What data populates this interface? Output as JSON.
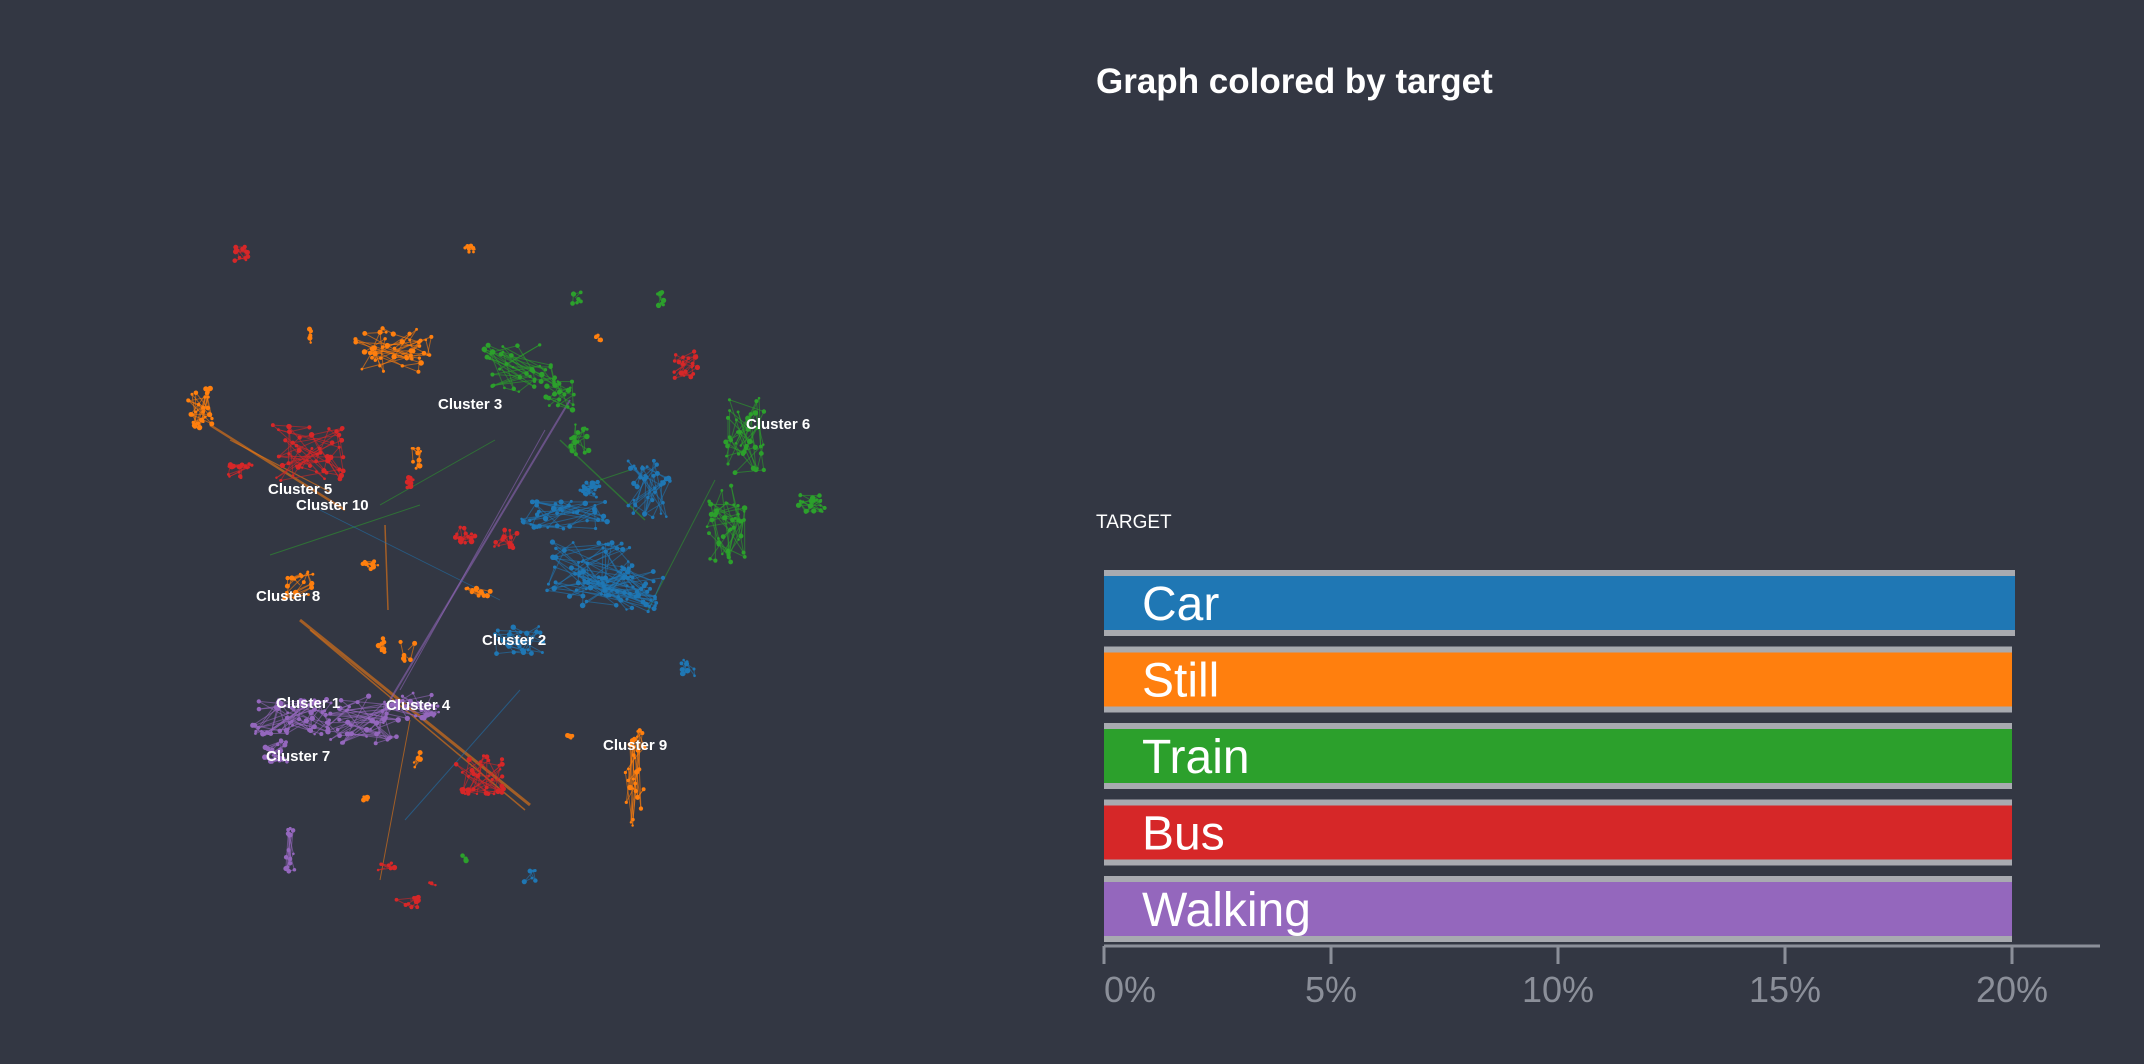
{
  "title": "Graph colored by target",
  "legend_title": "TARGET",
  "colors": {
    "background": "#333743",
    "Car": "#1f77b4",
    "Still": "#ff7f0e",
    "Train": "#2ca02c",
    "Bus": "#d62728",
    "Walking": "#9467bd",
    "bar_frame": "#a8aab0",
    "axis": "#8b8f99"
  },
  "graph": {
    "clusters": [
      {
        "label": "Cluster 1"
      },
      {
        "label": "Cluster 2"
      },
      {
        "label": "Cluster 3"
      },
      {
        "label": "Cluster 4"
      },
      {
        "label": "Cluster 5"
      },
      {
        "label": "Cluster 6"
      },
      {
        "label": "Cluster 7"
      },
      {
        "label": "Cluster 8"
      },
      {
        "label": "Cluster 9"
      },
      {
        "label": "Cluster 10"
      }
    ]
  },
  "chart_data": {
    "type": "bar",
    "orientation": "horizontal",
    "categories": [
      "Car",
      "Still",
      "Train",
      "Bus",
      "Walking"
    ],
    "values": [
      20,
      20,
      20,
      20,
      20
    ],
    "unit": "%",
    "xlim": [
      0,
      22
    ],
    "ticks": [
      "0%",
      "5%",
      "10%",
      "15%",
      "20%"
    ],
    "grid": false
  }
}
